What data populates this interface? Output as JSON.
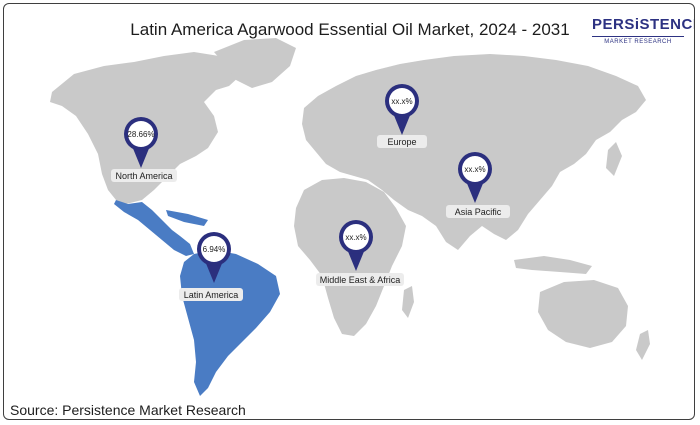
{
  "title": "Latin America Agarwood Essential Oil Market, 2024 - 2031",
  "logo": {
    "main": "PERSiSTENCE",
    "sub": "MARKET RESEARCH"
  },
  "source": "Source: Persistence Market Research",
  "colors": {
    "land": "#c9c9c9",
    "highlight": "#4a7cc4",
    "pin": "#2b2f7e",
    "label_bg": "#ececec"
  },
  "regions": [
    {
      "name": "North America",
      "value": "28.66%"
    },
    {
      "name": "Latin America",
      "value": "6.94%"
    },
    {
      "name": "Europe",
      "value": "xx.x%"
    },
    {
      "name": "Middle East & Africa",
      "value": "xx.x%"
    },
    {
      "name": "Asia Pacific",
      "value": "xx.x%"
    }
  ]
}
